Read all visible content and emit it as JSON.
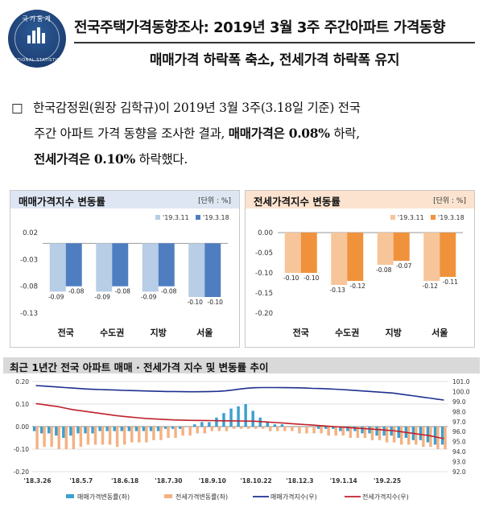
{
  "logo": {
    "korean": "국가통계",
    "english": "NATIONAL STATISTICS"
  },
  "header": {
    "title": "전국주택가격동향조사: 2019년 3월 3주 주간아파트 가격동향",
    "subtitle": "매매가격 하락폭 축소, 전세가격 하락폭 유지"
  },
  "summary": {
    "bullet": "□",
    "line1": "한국감정원(원장 김학규)이 2019년 3월 3주(3.18일 기준) 전국",
    "line2_pre": "주간 아파트 가격 동향을 조사한 결과, ",
    "line2_bold1": "매매가격은 ",
    "line2_bold2": "0.08%",
    "line2_post": " 하락,",
    "line3_bold1": "전세가격은 ",
    "line3_bold2": "0.10%",
    "line3_post": " 하락했다."
  },
  "colors": {
    "sale_prev": "#b8cde6",
    "sale_curr": "#4f7ec0",
    "jeonse_prev": "#f7c59a",
    "jeonse_curr": "#f0923c",
    "bar_sale": "#3aa0d0",
    "bar_jeonse": "#f4b183",
    "line_sale": "#1f2f8f",
    "line_jeonse": "#c0202a"
  },
  "chart_data": [
    {
      "type": "bar",
      "title": "매매가격지수 변동률",
      "unit": "[단위 : %]",
      "categories": [
        "전국",
        "수도권",
        "지방",
        "서울"
      ],
      "series": [
        {
          "name": "'19.3.11",
          "values": [
            -0.09,
            -0.09,
            -0.09,
            -0.1
          ]
        },
        {
          "name": "'19.3.18",
          "values": [
            -0.08,
            -0.08,
            -0.08,
            -0.1
          ]
        }
      ],
      "value_labels": [
        [
          "-0.09",
          "-0.09",
          "-0.09",
          "-0.10"
        ],
        [
          "-0.08",
          "-0.08",
          "-0.08",
          "-0.10"
        ]
      ],
      "yticks": [
        "0.02",
        "-0.03",
        "-0.08",
        "-0.13"
      ],
      "yticks_values": [
        0.02,
        -0.03,
        -0.08,
        -0.13
      ],
      "ylim": [
        -0.13,
        0.02
      ],
      "legend": "top-right"
    },
    {
      "type": "bar",
      "title": "전세가격지수 변동률",
      "unit": "[단위 : %]",
      "categories": [
        "전국",
        "수도권",
        "지방",
        "서울"
      ],
      "series": [
        {
          "name": "'19.3.11",
          "values": [
            -0.1,
            -0.13,
            -0.08,
            -0.12
          ]
        },
        {
          "name": "'19.3.18",
          "values": [
            -0.1,
            -0.12,
            -0.07,
            -0.11
          ]
        }
      ],
      "value_labels": [
        [
          "-0.10",
          "-0.13",
          "-0.08",
          "-0.12"
        ],
        [
          "-0.10",
          "-0.12",
          "-0.07",
          "-0.11"
        ]
      ],
      "yticks": [
        "0.00",
        "-0.05",
        "-0.10",
        "-0.15",
        "-0.20"
      ],
      "yticks_values": [
        0.0,
        -0.05,
        -0.1,
        -0.15,
        -0.2
      ],
      "ylim": [
        -0.2,
        0.0
      ],
      "legend": "top-right"
    },
    {
      "type": "bar+line",
      "title": "최근 1년간 전국 아파트 매매 · 전세가격 지수 및 변동률 추이",
      "x_labels": [
        "'18.3.26",
        "'18.5.7",
        "'18.6.18",
        "'18.7.30",
        "'18.9.10",
        "'18.10.22",
        "'18.12.3",
        "'19.1.14",
        "'19.2.25"
      ],
      "left_yticks": [
        "0.20",
        "0.10",
        "0.00",
        "-0.10",
        "-0.20"
      ],
      "left_yticks_values": [
        0.2,
        0.1,
        0.0,
        -0.1,
        -0.2
      ],
      "right_yticks": [
        "101.0",
        "100.0",
        "99.0",
        "98.0",
        "97.0",
        "96.0",
        "95.0",
        "94.0",
        "93.0",
        "92.0"
      ],
      "right_yticks_values": [
        101,
        100,
        99,
        98,
        97,
        96,
        95,
        94,
        93,
        92
      ],
      "left_ylim": [
        -0.2,
        0.2
      ],
      "right_ylim": [
        92,
        101
      ],
      "sale_change": [
        -0.02,
        -0.03,
        -0.03,
        -0.04,
        -0.05,
        -0.04,
        -0.03,
        -0.03,
        -0.03,
        -0.02,
        -0.02,
        -0.02,
        -0.02,
        -0.02,
        -0.02,
        -0.02,
        -0.02,
        -0.02,
        -0.01,
        -0.01,
        -0.01,
        0.0,
        0.01,
        0.02,
        0.02,
        0.04,
        0.06,
        0.08,
        0.09,
        0.1,
        0.07,
        0.04,
        0.02,
        0.01,
        0.01,
        0.0,
        0.0,
        0.0,
        0.0,
        -0.01,
        -0.01,
        -0.01,
        -0.02,
        -0.02,
        -0.02,
        -0.03,
        -0.03,
        -0.04,
        -0.04,
        -0.04,
        -0.05,
        -0.05,
        -0.06,
        -0.06,
        -0.07,
        -0.08,
        -0.08
      ],
      "jeonse_change": [
        -0.1,
        -0.09,
        -0.09,
        -0.1,
        -0.1,
        -0.1,
        -0.09,
        -0.08,
        -0.08,
        -0.08,
        -0.08,
        -0.09,
        -0.08,
        -0.07,
        -0.07,
        -0.07,
        -0.06,
        -0.06,
        -0.05,
        -0.05,
        -0.04,
        -0.04,
        -0.03,
        -0.03,
        -0.02,
        -0.02,
        -0.02,
        -0.01,
        -0.01,
        -0.01,
        -0.01,
        -0.01,
        -0.02,
        -0.02,
        -0.02,
        -0.02,
        -0.03,
        -0.03,
        -0.03,
        -0.03,
        -0.04,
        -0.04,
        -0.04,
        -0.05,
        -0.05,
        -0.05,
        -0.06,
        -0.06,
        -0.07,
        -0.07,
        -0.08,
        -0.08,
        -0.08,
        -0.09,
        -0.09,
        -0.1,
        -0.1
      ],
      "sale_index": [
        100.6,
        100.55,
        100.5,
        100.45,
        100.4,
        100.35,
        100.3,
        100.25,
        100.22,
        100.2,
        100.17,
        100.15,
        100.12,
        100.1,
        100.08,
        100.06,
        100.04,
        100.02,
        100.0,
        100.0,
        99.99,
        99.98,
        99.98,
        99.99,
        100.0,
        100.02,
        100.07,
        100.15,
        100.25,
        100.33,
        100.38,
        100.4,
        100.4,
        100.4,
        100.39,
        100.38,
        100.37,
        100.35,
        100.32,
        100.3,
        100.27,
        100.24,
        100.2,
        100.15,
        100.1,
        100.05,
        100.0,
        99.95,
        99.9,
        99.85,
        99.75,
        99.65,
        99.55,
        99.45,
        99.35,
        99.25,
        99.15
      ],
      "jeonse_index": [
        98.8,
        98.7,
        98.6,
        98.5,
        98.35,
        98.2,
        98.1,
        98.0,
        97.9,
        97.8,
        97.7,
        97.6,
        97.52,
        97.45,
        97.38,
        97.32,
        97.28,
        97.24,
        97.2,
        97.17,
        97.15,
        97.13,
        97.12,
        97.11,
        97.1,
        97.09,
        97.08,
        97.07,
        97.06,
        97.05,
        97.04,
        97.0,
        96.95,
        96.9,
        96.85,
        96.8,
        96.75,
        96.7,
        96.65,
        96.6,
        96.55,
        96.5,
        96.45,
        96.4,
        96.35,
        96.3,
        96.25,
        96.2,
        96.15,
        96.1,
        96.0,
        95.9,
        95.8,
        95.7,
        95.6,
        95.45,
        95.3
      ],
      "legend": [
        "매매가격변동률(좌)",
        "전세가격변동률(좌)",
        "매매가격지수(우)",
        "전세가격지수(우)"
      ]
    }
  ]
}
